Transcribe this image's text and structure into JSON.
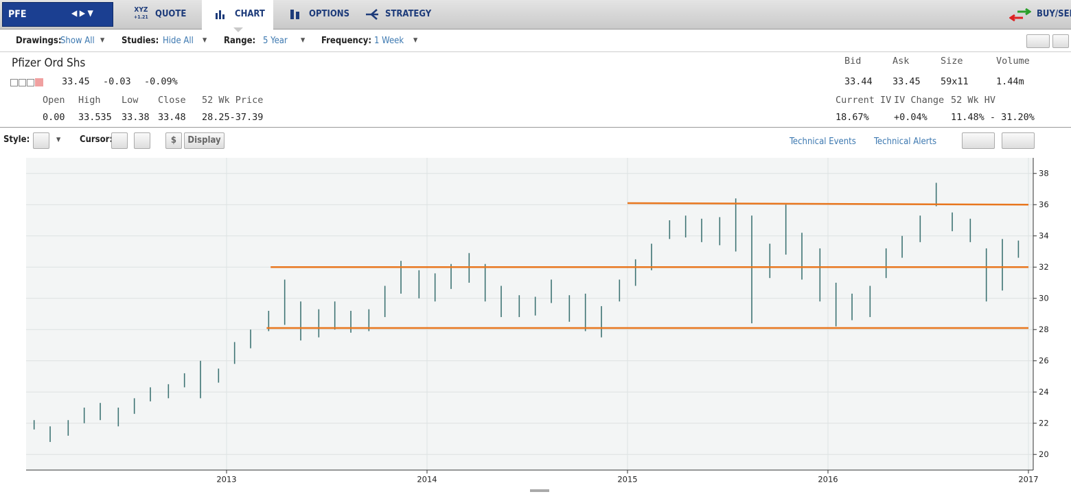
{
  "nav": {
    "symbol": "PFE",
    "quote_icon": "XYZ",
    "quote_icon_change": "+1.21",
    "tabs": [
      "QUOTE",
      "CHART",
      "OPTIONS",
      "STRATEGY"
    ],
    "buy_sell": "BUY/SELL"
  },
  "toolbar": [
    {
      "label": "Drawings:",
      "value": "Show All"
    },
    {
      "label": "Studies:",
      "value": "Hide All"
    },
    {
      "label": "Range:",
      "value": "5 Year"
    },
    {
      "label": "Frequency:",
      "value": "1 Week"
    }
  ],
  "quote": {
    "name": "Pfizer Ord Shs",
    "last": "33.45",
    "change": "-0.03",
    "change_pct": "-0.09%",
    "fields": [
      {
        "label": "Open",
        "value": "0.00"
      },
      {
        "label": "High",
        "value": "33.535"
      },
      {
        "label": "Low",
        "value": "33.38"
      },
      {
        "label": "Close",
        "value": "33.48"
      },
      {
        "label": "52 Wk Price",
        "value": "28.25-37.39"
      }
    ],
    "right": [
      {
        "label": "Bid",
        "value": "33.44"
      },
      {
        "label": "Ask",
        "value": "33.45"
      },
      {
        "label": "Size",
        "value": "59x11"
      },
      {
        "label": "Volume",
        "value": "1.44m"
      }
    ],
    "right2": [
      {
        "label": "Current IV",
        "value": "18.67%"
      },
      {
        "label": "IV Change",
        "value": "+0.04%"
      },
      {
        "label": "52 Wk HV",
        "value": "11.48% - 31.20%"
      }
    ]
  },
  "chart_controls": {
    "style": "Style:",
    "cursor": "Cursor:",
    "dollar": "$",
    "display": "Display",
    "technical_events": "Technical Events",
    "technical_alerts": "Technical Alerts"
  },
  "chart_data": {
    "type": "ohlc",
    "color": "#3d7373",
    "level_color": "#e8761e",
    "xlim": [
      2012,
      2017
    ],
    "xticks": [
      2013,
      2014,
      2015,
      2016,
      2017
    ],
    "ylim": [
      19,
      39
    ],
    "yticks": [
      20,
      22,
      24,
      26,
      28,
      30,
      32,
      34,
      36,
      38
    ],
    "grid": true,
    "x": [
      2012.04,
      2012.12,
      2012.21,
      2012.29,
      2012.37,
      2012.46,
      2012.54,
      2012.62,
      2012.71,
      2012.79,
      2012.87,
      2012.96,
      2013.04,
      2013.12,
      2013.21,
      2013.29,
      2013.37,
      2013.46,
      2013.54,
      2013.62,
      2013.71,
      2013.79,
      2013.87,
      2013.96,
      2014.04,
      2014.12,
      2014.21,
      2014.29,
      2014.37,
      2014.46,
      2014.54,
      2014.62,
      2014.71,
      2014.79,
      2014.87,
      2014.96,
      2015.04,
      2015.12,
      2015.21,
      2015.29,
      2015.37,
      2015.46,
      2015.54,
      2015.62,
      2015.71,
      2015.79,
      2015.87,
      2015.96,
      2016.04,
      2016.12,
      2016.21,
      2016.29,
      2016.37,
      2016.46,
      2016.54,
      2016.62,
      2016.71,
      2016.79,
      2016.87,
      2016.95
    ],
    "high": [
      22.2,
      21.8,
      22.2,
      23.0,
      23.3,
      23.0,
      23.6,
      24.3,
      24.5,
      25.2,
      26.0,
      25.5,
      27.2,
      28.0,
      29.2,
      31.2,
      29.8,
      29.3,
      29.8,
      29.2,
      29.3,
      30.8,
      32.4,
      31.8,
      31.6,
      32.2,
      32.9,
      32.2,
      30.8,
      30.2,
      30.1,
      31.2,
      30.2,
      30.3,
      29.5,
      31.2,
      32.5,
      33.5,
      35.0,
      35.3,
      35.1,
      35.2,
      36.4,
      35.3,
      33.5,
      36.0,
      34.2,
      33.2,
      31.0,
      30.3,
      30.8,
      33.2,
      34.0,
      35.3,
      37.4,
      35.5,
      35.1,
      33.2,
      33.8,
      33.7
    ],
    "low": [
      21.6,
      20.8,
      21.2,
      22.0,
      22.2,
      21.8,
      22.6,
      23.4,
      23.6,
      24.3,
      23.6,
      24.6,
      25.8,
      26.8,
      27.9,
      28.3,
      27.3,
      27.5,
      28.0,
      27.8,
      27.9,
      28.8,
      30.3,
      30.0,
      29.8,
      30.6,
      31.0,
      29.8,
      28.8,
      28.8,
      28.9,
      29.7,
      28.5,
      27.9,
      27.5,
      29.8,
      30.8,
      31.8,
      33.8,
      33.9,
      33.6,
      33.4,
      33.0,
      28.4,
      31.3,
      32.8,
      31.2,
      29.8,
      28.2,
      28.6,
      28.8,
      31.3,
      32.6,
      33.6,
      35.9,
      34.3,
      33.6,
      29.8,
      30.5,
      32.6
    ],
    "levels": [
      {
        "x": [
          2015,
          2017
        ],
        "y": [
          36.1,
          36
        ]
      },
      {
        "x": [
          2013.22,
          2017
        ],
        "y": [
          32,
          32
        ]
      },
      {
        "x": [
          2013.2,
          2017
        ],
        "y": [
          28.1,
          28.1
        ]
      }
    ]
  }
}
